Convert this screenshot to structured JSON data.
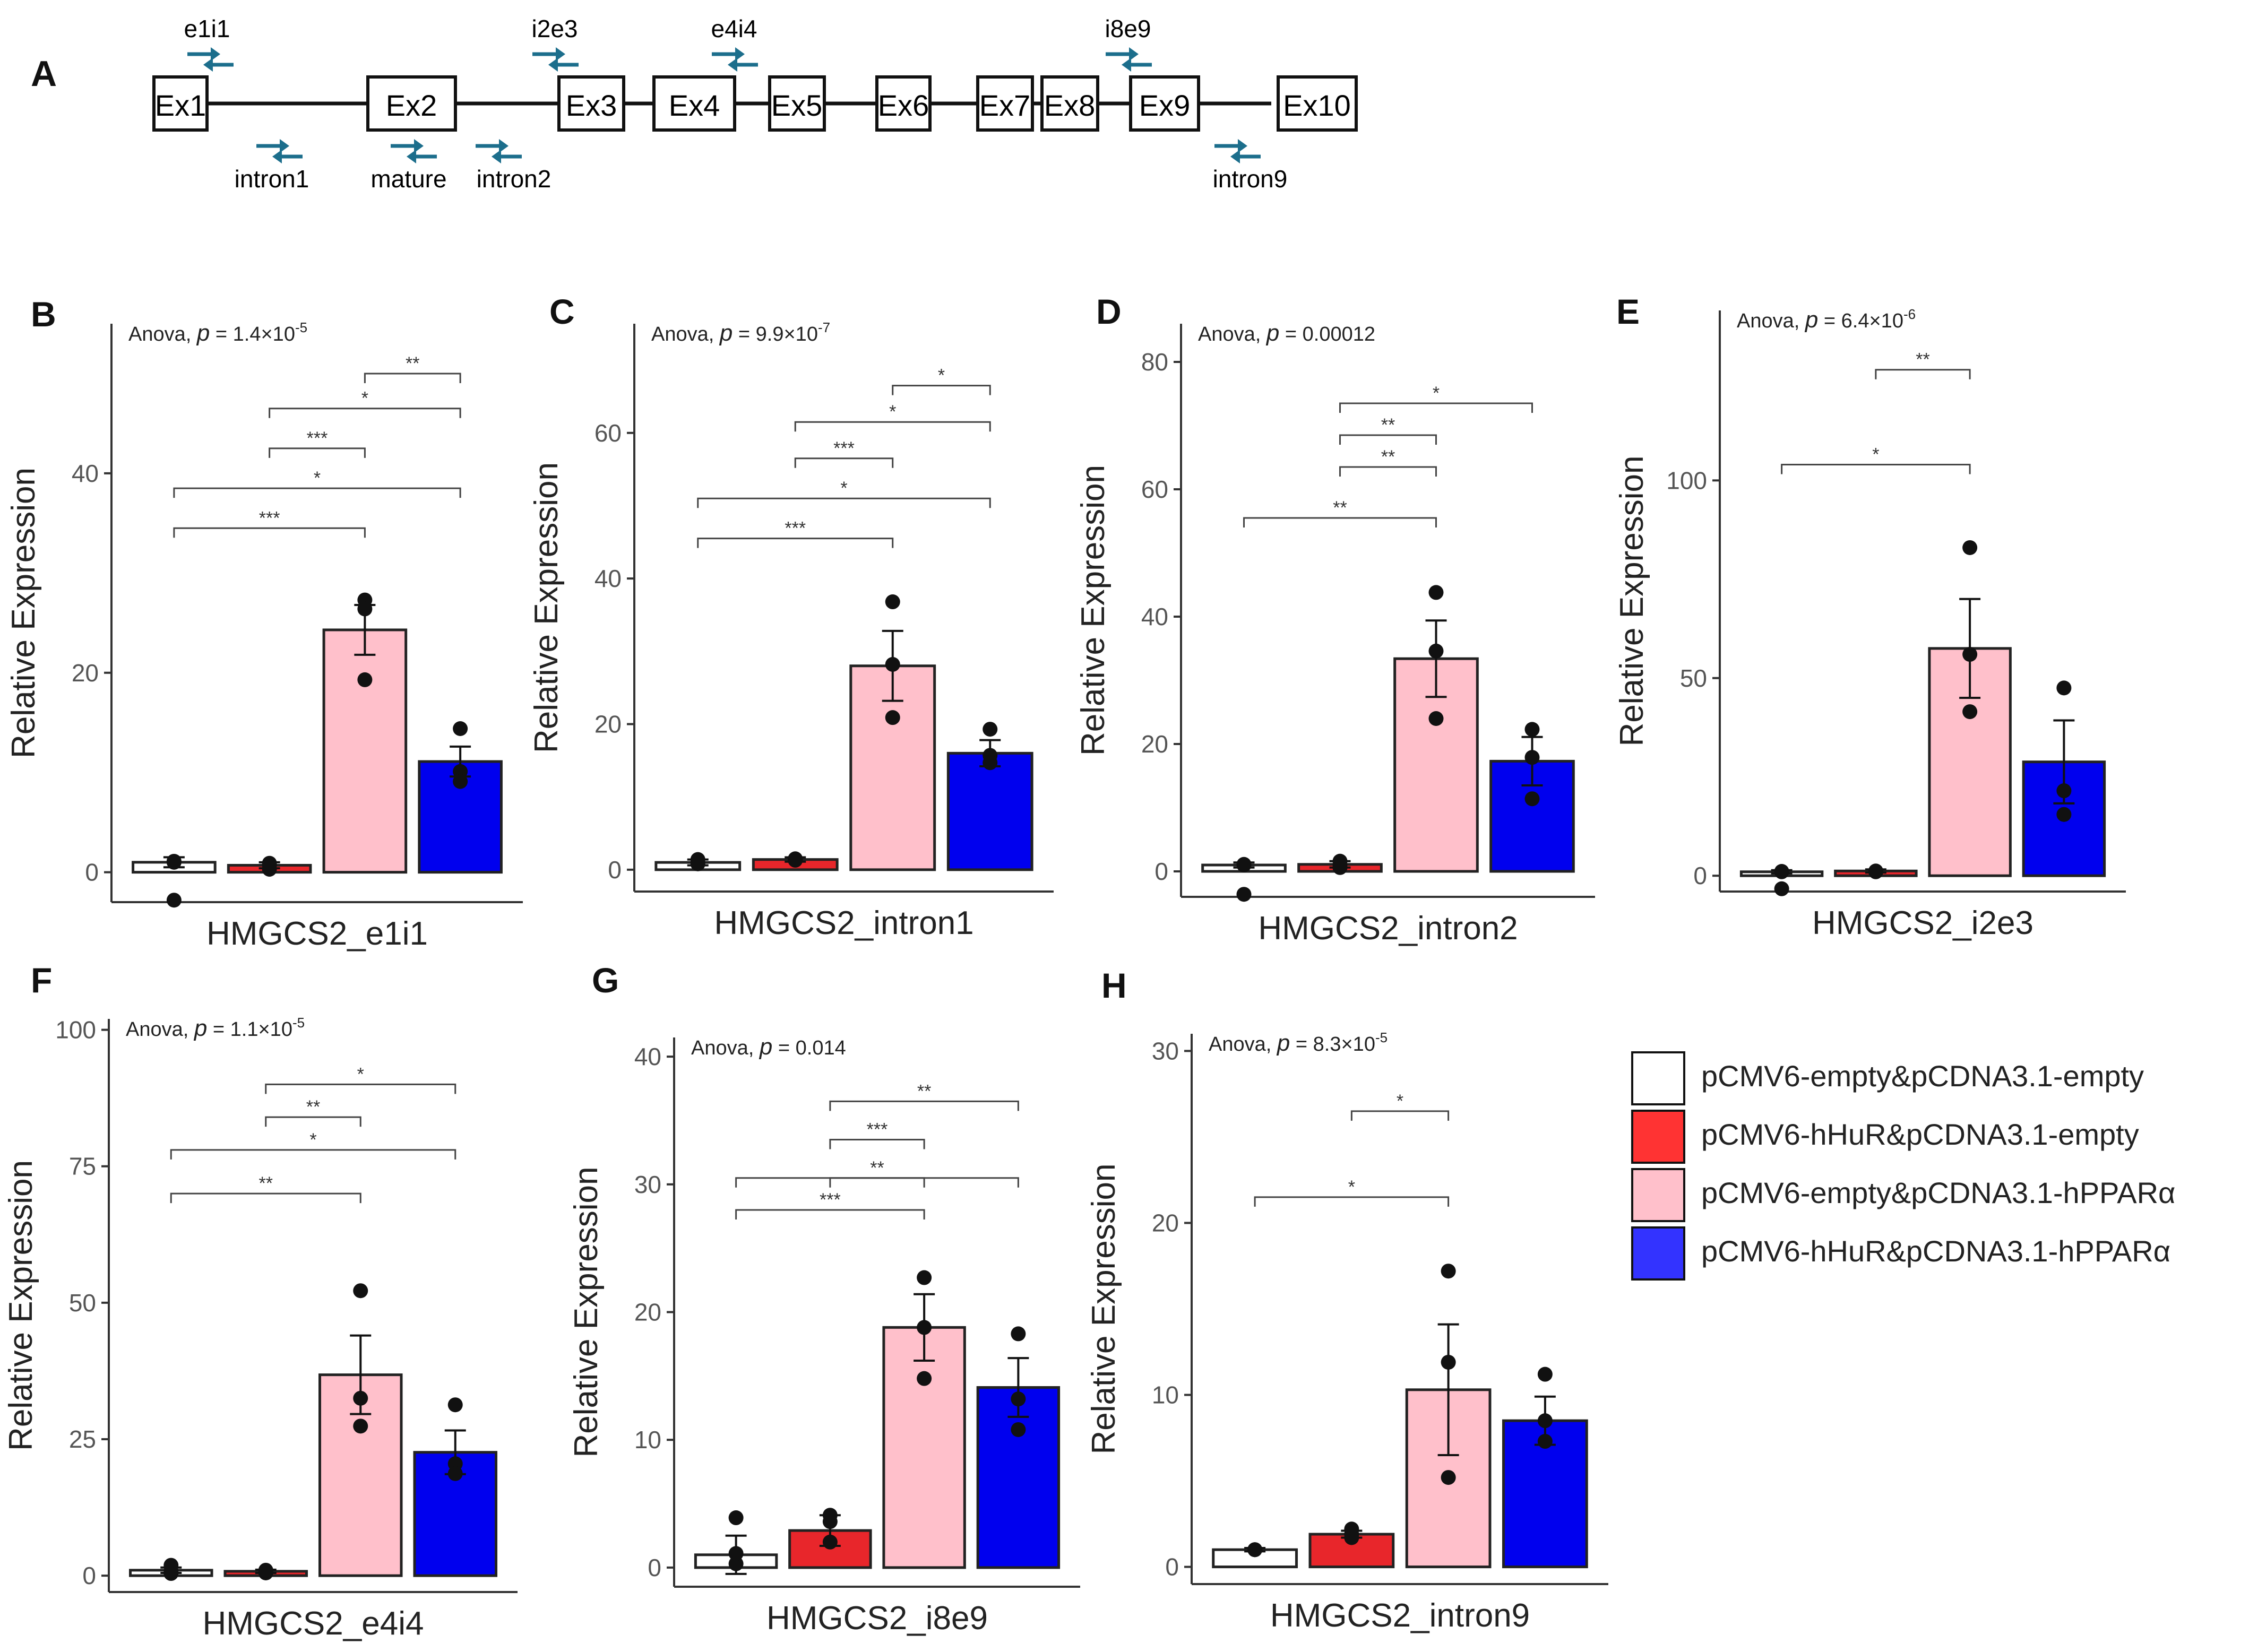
{
  "colors": {
    "white_bar": "#ffffff",
    "red_bar": "#e8262b",
    "pink_bar": "#ffc0cb",
    "blue_bar": "#0000ee",
    "arrow": "#1c6e8c",
    "axis": "#333333",
    "tick_text": "#555555",
    "bracket": "#444444",
    "legend_red": "#ff3333",
    "legend_blue": "#3333ff"
  },
  "panel_a": {
    "letter": "A",
    "exons": [
      "Ex1",
      "Ex2",
      "Ex3",
      "Ex4",
      "Ex5",
      "Ex6",
      "Ex7",
      "Ex8",
      "Ex9",
      "Ex10"
    ],
    "primers_top": [
      "e1i1",
      "i2e3",
      "e4i4",
      "i8e9"
    ],
    "primers_bottom": [
      "intron1",
      "mature",
      "intron2",
      "intron9"
    ],
    "arrow_icon": "primer-arrow-pair-icon"
  },
  "legend": {
    "items": [
      {
        "label": "pCMV6-empty&pCDNA3.1-empty",
        "color": "#ffffff"
      },
      {
        "label": "pCMV6-hHuR&pCDNA3.1-empty",
        "color": "#ff3333"
      },
      {
        "label": "pCMV6-empty&pCDNA3.1-hPPARα",
        "color": "#ffc0cb"
      },
      {
        "label": "pCMV6-hHuR&pCDNA3.1-hPPARα",
        "color": "#3333ff"
      }
    ]
  },
  "chart_data": [
    {
      "panel": "B",
      "type": "bar",
      "title": "",
      "xlabel": "HMGCS2_e1i1",
      "ylabel": "Relative Expression",
      "anova": {
        "text": "Anova, ",
        "p_label": "p",
        "p_value": " = 1.4×10",
        "p_exp": "-5"
      },
      "ylim": [
        -3,
        55
      ],
      "ticks": [
        0,
        20,
        40
      ],
      "tick_labels": [
        "0",
        "20",
        "40"
      ],
      "values": [
        1,
        0.7,
        24.3,
        11.1
      ],
      "errors": [
        0.5,
        0.3,
        2.5,
        1.5
      ],
      "points": [
        [
          1.1,
          -2.8,
          1.0
        ],
        [
          0.9,
          0.7,
          0.3
        ],
        [
          27.3,
          26.4,
          19.3
        ],
        [
          14.4,
          10.1,
          9.1
        ]
      ],
      "brackets": [
        {
          "from": 3,
          "to": 4,
          "y": 50,
          "label": "**"
        },
        {
          "from": 2,
          "to": 4,
          "y": 46.5,
          "label": "*"
        },
        {
          "from": 2,
          "to": 3,
          "y": 42.5,
          "label": "***"
        },
        {
          "from": 1,
          "to": 4,
          "y": 38.5,
          "label": "*"
        },
        {
          "from": 1,
          "to": 3,
          "y": 34.5,
          "label": "***"
        }
      ]
    },
    {
      "panel": "C",
      "type": "bar",
      "title": "",
      "xlabel": "HMGCS2_intron1",
      "ylabel": "Relative Expression",
      "anova": {
        "text": "Anova, ",
        "p_label": "p",
        "p_value": " = 9.9×10",
        "p_exp": "-7"
      },
      "ylim": [
        -3,
        75
      ],
      "ticks": [
        0,
        20,
        40,
        60
      ],
      "tick_labels": [
        "0",
        "20",
        "40",
        "60"
      ],
      "values": [
        1,
        1.4,
        28,
        16
      ],
      "errors": [
        0.4,
        0.3,
        4.8,
        1.8
      ],
      "points": [
        [
          1.4,
          0.8,
          1.0
        ],
        [
          1.4,
          1.3,
          1.5
        ],
        [
          36.8,
          28.2,
          20.9
        ],
        [
          19.3,
          15.7,
          14.7
        ]
      ],
      "brackets": [
        {
          "from": 3,
          "to": 4,
          "y": 66.5,
          "label": "*"
        },
        {
          "from": 2,
          "to": 4,
          "y": 61.5,
          "label": "*"
        },
        {
          "from": 2,
          "to": 3,
          "y": 56.5,
          "label": "***"
        },
        {
          "from": 1,
          "to": 4,
          "y": 51,
          "label": "*"
        },
        {
          "from": 1,
          "to": 3,
          "y": 45.5,
          "label": "***"
        }
      ]
    },
    {
      "panel": "D",
      "type": "bar",
      "title": "",
      "xlabel": "HMGCS2_intron2",
      "ylabel": "Relative Expression",
      "anova": {
        "text": "Anova, ",
        "p_label": "p",
        "p_value": " = 0.00012",
        "p_exp": ""
      },
      "ylim": [
        -4,
        86
      ],
      "ticks": [
        0,
        20,
        40,
        60,
        80
      ],
      "tick_labels": [
        "0",
        "20",
        "40",
        "60",
        "80"
      ],
      "values": [
        1,
        1.1,
        33.4,
        17.3
      ],
      "errors": [
        0.4,
        0.5,
        6,
        3.8
      ],
      "points": [
        [
          1.0,
          -3.6,
          1.1
        ],
        [
          1.6,
          0.6,
          1.0
        ],
        [
          43.8,
          34.6,
          24.0
        ],
        [
          22.3,
          17.9,
          11.4
        ]
      ],
      "brackets": [
        {
          "from": 2,
          "to": 4,
          "y": 73.5,
          "label": "*"
        },
        {
          "from": 2,
          "to": 3,
          "y": 68.5,
          "label": "**"
        },
        {
          "from": 2,
          "to": 3,
          "y": 63.5,
          "label": "**"
        },
        {
          "from": 1,
          "to": 3,
          "y": 55.5,
          "label": "**"
        }
      ]
    },
    {
      "panel": "E",
      "type": "bar",
      "title": "",
      "xlabel": "HMGCS2_i2e3",
      "ylabel": "Relative Expression",
      "anova": {
        "text": "Anova, ",
        "p_label": "p",
        "p_value": " = 6.4×10",
        "p_exp": "-6"
      },
      "ylim": [
        -4,
        143
      ],
      "ticks": [
        0,
        50,
        100
      ],
      "tick_labels": [
        "0",
        "50",
        "100"
      ],
      "values": [
        1,
        1.2,
        57.5,
        28.8
      ],
      "errors": [
        0.4,
        0.4,
        12.5,
        10.5
      ],
      "points": [
        [
          1.0,
          -3.3,
          1.1
        ],
        [
          1.1,
          1.2,
          1.0
        ],
        [
          83.0,
          56.0,
          41.5
        ],
        [
          47.5,
          21.5,
          15.5
        ]
      ],
      "brackets": [
        {
          "from": 2,
          "to": 3,
          "y": 128,
          "label": "**"
        },
        {
          "from": 1,
          "to": 3,
          "y": 104,
          "label": "*"
        }
      ]
    },
    {
      "panel": "F",
      "type": "bar",
      "title": "",
      "xlabel": "HMGCS2_e4i4",
      "ylabel": "Relative Expression",
      "anova": {
        "text": "Anova, ",
        "p_label": "p",
        "p_value": " = 1.1×10",
        "p_exp": "-5"
      },
      "ylim": [
        -3,
        102
      ],
      "ticks": [
        0,
        25,
        50,
        75,
        100
      ],
      "tick_labels": [
        "0",
        "25",
        "50",
        "75",
        "100"
      ],
      "values": [
        1,
        0.8,
        36.8,
        22.6
      ],
      "errors": [
        0.5,
        0.3,
        7.2,
        4
      ],
      "points": [
        [
          1.9,
          0.4,
          0.8
        ],
        [
          0.9,
          0.5,
          1.0
        ],
        [
          52.2,
          32.5,
          27.4
        ],
        [
          31.3,
          20.5,
          18.7
        ]
      ],
      "brackets": [
        {
          "from": 2,
          "to": 4,
          "y": 90,
          "label": "*"
        },
        {
          "from": 2,
          "to": 3,
          "y": 84,
          "label": "**"
        },
        {
          "from": 1,
          "to": 4,
          "y": 78,
          "label": "*"
        },
        {
          "from": 1,
          "to": 3,
          "y": 70,
          "label": "**"
        }
      ]
    },
    {
      "panel": "G",
      "type": "bar",
      "title": "",
      "xlabel": "HMGCS2_i8e9",
      "ylabel": "Relative Expression",
      "anova": {
        "text": "Anova, ",
        "p_label": "p",
        "p_value": " = 0.014",
        "p_exp": ""
      },
      "ylim": [
        -1.5,
        41.5
      ],
      "ticks": [
        0,
        10,
        20,
        30,
        40
      ],
      "tick_labels": [
        "0",
        "10",
        "20",
        "30",
        "40"
      ],
      "values": [
        1,
        2.9,
        18.8,
        14.1
      ],
      "errors": [
        1.5,
        1.2,
        2.6,
        2.3
      ],
      "points": [
        [
          3.9,
          0.3,
          1.1
        ],
        [
          4.1,
          3.6,
          2.0
        ],
        [
          22.7,
          18.8,
          14.8
        ],
        [
          18.3,
          13.2,
          10.8
        ]
      ],
      "brackets": [
        {
          "from": 2,
          "to": 4,
          "y": 36.5,
          "label": "**"
        },
        {
          "from": 2,
          "to": 3,
          "y": 33.5,
          "label": "***"
        },
        {
          "from": 2,
          "to": 3,
          "y": 30.5,
          "label": "**"
        },
        {
          "from": 1,
          "to": 4,
          "y": 30.5,
          "label": ""
        },
        {
          "from": 1,
          "to": 3,
          "y": 28,
          "label": "***"
        }
      ]
    },
    {
      "panel": "H",
      "type": "bar",
      "title": "",
      "xlabel": "HMGCS2_intron9",
      "ylabel": "Relative Expression",
      "anova": {
        "text": "Anova, ",
        "p_label": "p",
        "p_value": " = 8.3×10",
        "p_exp": "-5"
      },
      "ylim": [
        -1,
        31
      ],
      "ticks": [
        0,
        10,
        20,
        30
      ],
      "tick_labels": [
        "0",
        "10",
        "20",
        "30"
      ],
      "values": [
        1,
        1.9,
        10.3,
        8.5
      ],
      "errors": [
        0.1,
        0.2,
        3.8,
        1.4
      ],
      "points": [
        [
          1.0,
          1.0,
          1.0
        ],
        [
          2.2,
          1.9,
          1.7
        ],
        [
          17.2,
          11.9,
          5.2
        ],
        [
          11.2,
          8.5,
          7.3
        ]
      ],
      "brackets": [
        {
          "from": 2,
          "to": 3,
          "y": 26.5,
          "label": "*"
        },
        {
          "from": 1,
          "to": 3,
          "y": 21.5,
          "label": "*"
        }
      ]
    }
  ]
}
